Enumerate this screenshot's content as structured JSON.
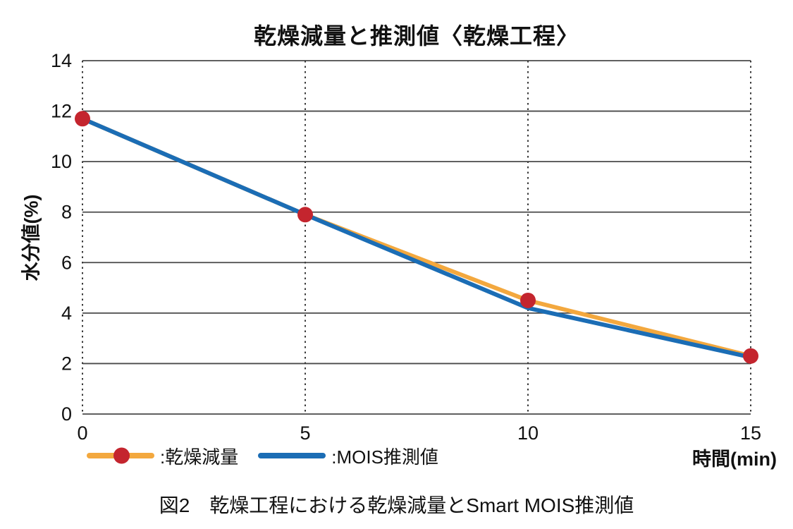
{
  "title": "乾燥減量と推測値〈乾燥工程〉",
  "caption": "図2　乾燥工程における乾燥減量とSmart MOIS推測値",
  "colors": {
    "grid_horizontal": "#4a4a4a",
    "grid_vertical": "#3a3a3a",
    "axis_text": "#111111",
    "drying_loss_line": "#F3A83E",
    "drying_loss_marker": "#C4252E",
    "mois_line": "#1B6DB5"
  },
  "chart_data": {
    "type": "line",
    "title": "乾燥減量と推測値〈乾燥工程〉",
    "xlabel": "時間(min)",
    "ylabel": "水分値(%)",
    "x": [
      0,
      5,
      10,
      15
    ],
    "series": [
      {
        "name": "乾燥減量",
        "values": [
          11.7,
          7.9,
          4.5,
          2.3
        ],
        "color": "#F3A83E",
        "marker": "circle",
        "marker_color": "#C4252E",
        "has_markers": true
      },
      {
        "name": "MOIS推測値",
        "values": [
          11.7,
          7.9,
          4.2,
          2.25
        ],
        "color": "#1B6DB5",
        "has_markers": false
      }
    ],
    "legend": [
      ":乾燥減量",
      ":MOIS推測値"
    ],
    "legend_position": "bottom-left",
    "x_ticks": [
      0,
      5,
      10,
      15
    ],
    "y_ticks": [
      0,
      2,
      4,
      6,
      8,
      10,
      12,
      14
    ],
    "xlim": [
      0,
      15
    ],
    "ylim": [
      0,
      14
    ],
    "grid": {
      "horizontal": "solid",
      "vertical": "dotted"
    }
  }
}
